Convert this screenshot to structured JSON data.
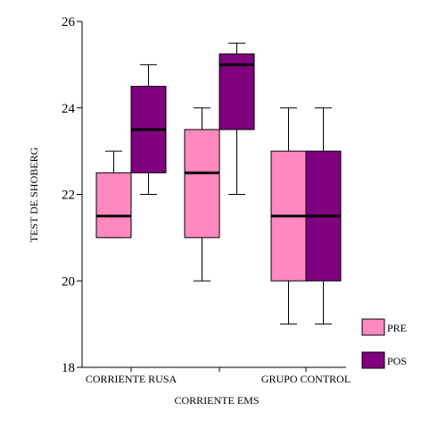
{
  "chart_data": {
    "type": "boxplot",
    "title": "",
    "xlabel": "CORRIENTE EMS",
    "ylabel": "TEST DE SHOBERG",
    "ylim": [
      18,
      26
    ],
    "yticks": [
      18,
      20,
      22,
      24,
      26
    ],
    "categories": [
      "CORRIENTE RUSA",
      "",
      "GRUPO CONTROL"
    ],
    "grid": false,
    "legend_position": "bottom-right",
    "series": [
      {
        "name": "PRE",
        "color": "#ff88c0",
        "boxes": [
          {
            "min": 21,
            "q1": 21,
            "median": 21.5,
            "q3": 22.5,
            "max": 23
          },
          {
            "min": 20,
            "q1": 21,
            "median": 22.5,
            "q3": 23.5,
            "max": 24
          },
          {
            "min": 19,
            "q1": 20,
            "median": 21.5,
            "q3": 23,
            "max": 24
          }
        ]
      },
      {
        "name": "POS",
        "color": "#800080",
        "boxes": [
          {
            "min": 22,
            "q1": 22.5,
            "median": 23.5,
            "q3": 24.5,
            "max": 25
          },
          {
            "min": 22,
            "q1": 23.5,
            "median": 25,
            "q3": 25.25,
            "max": 25.5
          },
          {
            "min": 19,
            "q1": 20,
            "median": 21.5,
            "q3": 23,
            "max": 24
          }
        ]
      }
    ]
  }
}
